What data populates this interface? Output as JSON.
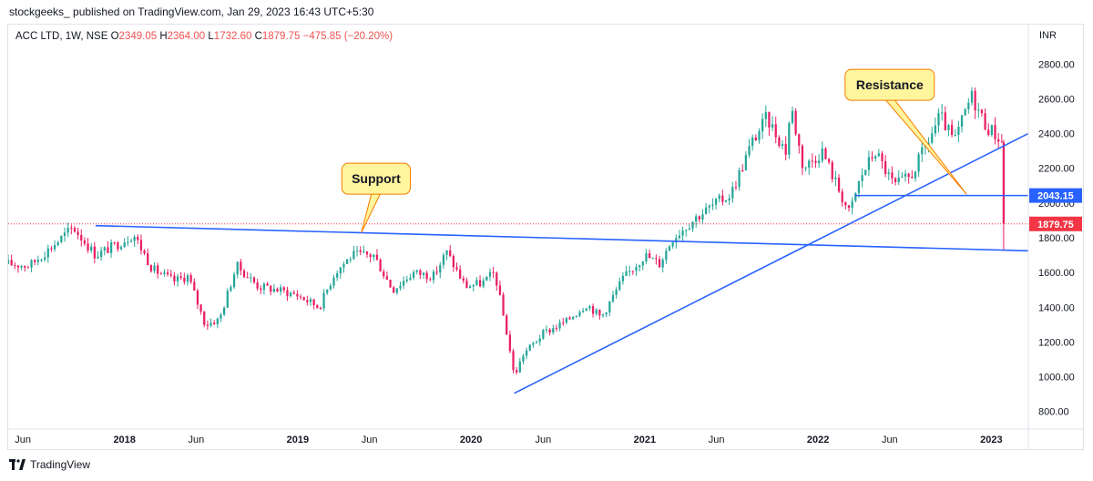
{
  "header": {
    "published_line": "stockgeeks_ published on TradingView.com, Jan 29, 2023 16:43 UTC+5:30"
  },
  "legend": {
    "symbol": "ACC LTD, 1W, NSE",
    "o_label": "O",
    "o_value": "2349.05",
    "h_label": "H",
    "h_value": "2364.00",
    "l_label": "L",
    "l_value": "1732.60",
    "c_label": "C",
    "c_value": "1879.75",
    "change": "−475.85 (−20.20%)"
  },
  "footer": {
    "brand": "TradingView"
  },
  "colors": {
    "up": "#26a69a",
    "down": "#ef5350",
    "downBody": "#e91e63",
    "trendline": "#2962ff",
    "label_fill": "#fff59d",
    "label_border": "#f57c00",
    "price_badge": "#f23645",
    "level_badge": "#2962ff"
  },
  "chart_data": {
    "type": "candlestick",
    "currency_label": "INR",
    "y_ticks": [
      "2800.00",
      "2600.00",
      "2400.00",
      "2200.00",
      "2000.00",
      "1800.00",
      "1600.00",
      "1400.00",
      "1200.00",
      "1000.00",
      "800.00"
    ],
    "y_tick_values": [
      2800,
      2600,
      2400,
      2200,
      2000,
      1800,
      1600,
      1400,
      1200,
      1000,
      800
    ],
    "ylim": [
      720,
      2880
    ],
    "x_range": [
      "2017-05-01",
      "2023-03-20"
    ],
    "x_ticks": [
      {
        "label": "Jun",
        "date": "2017-06-01"
      },
      {
        "label": "2018",
        "date": "2018-01-01"
      },
      {
        "label": "Jun",
        "date": "2018-06-01"
      },
      {
        "label": "2019",
        "date": "2019-01-01"
      },
      {
        "label": "Jun",
        "date": "2019-06-01"
      },
      {
        "label": "2020",
        "date": "2020-01-01"
      },
      {
        "label": "Jun",
        "date": "2020-06-01"
      },
      {
        "label": "2021",
        "date": "2021-01-01"
      },
      {
        "label": "Jun",
        "date": "2021-06-01"
      },
      {
        "label": "2022",
        "date": "2022-01-01"
      },
      {
        "label": "Jun",
        "date": "2022-06-01"
      },
      {
        "label": "2023",
        "date": "2023-01-01"
      }
    ],
    "price_anchors": [
      [
        "2017-05-01",
        1650
      ],
      [
        "2017-06-15",
        1640
      ],
      [
        "2017-08-01",
        1750
      ],
      [
        "2017-09-15",
        1860
      ],
      [
        "2017-11-01",
        1700
      ],
      [
        "2017-12-15",
        1760
      ],
      [
        "2018-01-20",
        1820
      ],
      [
        "2018-03-01",
        1620
      ],
      [
        "2018-04-15",
        1550
      ],
      [
        "2018-05-15",
        1580
      ],
      [
        "2018-06-20",
        1300
      ],
      [
        "2018-07-20",
        1330
      ],
      [
        "2018-08-25",
        1640
      ],
      [
        "2018-10-10",
        1520
      ],
      [
        "2018-11-20",
        1500
      ],
      [
        "2019-01-01",
        1470
      ],
      [
        "2019-02-15",
        1400
      ],
      [
        "2019-03-20",
        1600
      ],
      [
        "2019-04-25",
        1700
      ],
      [
        "2019-06-10",
        1700
      ],
      [
        "2019-07-20",
        1500
      ],
      [
        "2019-09-01",
        1600
      ],
      [
        "2019-10-15",
        1580
      ],
      [
        "2019-11-10",
        1720
      ],
      [
        "2019-12-20",
        1520
      ],
      [
        "2020-01-25",
        1540
      ],
      [
        "2020-02-20",
        1600
      ],
      [
        "2020-03-20",
        1200
      ],
      [
        "2020-04-01",
        1000
      ],
      [
        "2020-04-20",
        1130
      ],
      [
        "2020-06-01",
        1250
      ],
      [
        "2020-07-20",
        1320
      ],
      [
        "2020-09-01",
        1420
      ],
      [
        "2020-10-01",
        1340
      ],
      [
        "2020-11-15",
        1560
      ],
      [
        "2021-01-01",
        1700
      ],
      [
        "2021-02-01",
        1650
      ],
      [
        "2021-03-01",
        1800
      ],
      [
        "2021-04-20",
        1920
      ],
      [
        "2021-06-01",
        2000
      ],
      [
        "2021-07-01",
        2050
      ],
      [
        "2021-08-15",
        2350
      ],
      [
        "2021-09-15",
        2490
      ],
      [
        "2021-10-25",
        2300
      ],
      [
        "2021-11-05",
        2560
      ],
      [
        "2021-12-01",
        2200
      ],
      [
        "2022-01-10",
        2300
      ],
      [
        "2022-02-10",
        2100
      ],
      [
        "2022-03-08",
        1940
      ],
      [
        "2022-04-01",
        2150
      ],
      [
        "2022-05-01",
        2300
      ],
      [
        "2022-06-10",
        2100
      ],
      [
        "2022-07-15",
        2150
      ],
      [
        "2022-08-20",
        2350
      ],
      [
        "2022-09-15",
        2500
      ],
      [
        "2022-10-15",
        2350
      ],
      [
        "2022-11-20",
        2620
      ],
      [
        "2022-12-20",
        2450
      ],
      [
        "2023-01-15",
        2380
      ],
      [
        "2023-01-23",
        2349
      ]
    ],
    "last_candle": {
      "date": "2023-01-27",
      "open": 2349.05,
      "high": 2364.0,
      "low": 1732.6,
      "close": 1879.75
    },
    "current_price_line": 1879.75,
    "horizontal_level": {
      "value": 2043.15,
      "start_date": "2022-03-20",
      "end_date": "2023-03-20"
    },
    "trendlines": [
      {
        "name": "support-trendline",
        "from": {
          "date": "2017-11-01",
          "price": 1870
        },
        "to": {
          "date": "2023-03-20",
          "price": 1725
        }
      },
      {
        "name": "rising-trendline",
        "from": {
          "date": "2020-04-01",
          "price": 905
        },
        "to": {
          "date": "2023-03-20",
          "price": 2400
        }
      }
    ],
    "annotations": [
      {
        "text": "Support",
        "box_date": "2019-06-15",
        "box_price": 2140,
        "pointer_to": {
          "date": "2019-05-15",
          "price": 1830
        }
      },
      {
        "text": "Resistance",
        "box_date": "2022-06-01",
        "box_price": 2680,
        "pointer_to": {
          "date": "2022-11-10",
          "price": 2050
        }
      }
    ]
  }
}
